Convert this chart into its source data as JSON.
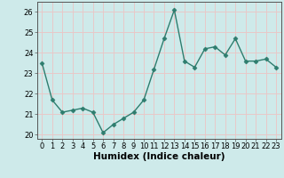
{
  "x": [
    0,
    1,
    2,
    3,
    4,
    5,
    6,
    7,
    8,
    9,
    10,
    11,
    12,
    13,
    14,
    15,
    16,
    17,
    18,
    19,
    20,
    21,
    22,
    23
  ],
  "y": [
    23.5,
    21.7,
    21.1,
    21.2,
    21.3,
    21.1,
    20.1,
    20.5,
    20.8,
    21.1,
    21.7,
    23.2,
    24.7,
    26.1,
    23.6,
    23.3,
    24.2,
    24.3,
    23.9,
    24.7,
    23.6,
    23.6,
    23.7,
    23.3
  ],
  "line_color": "#2e7d6e",
  "marker": "D",
  "marker_size": 2.5,
  "bg_color": "#ceeaea",
  "grid_color": "#e8c8c8",
  "xlabel": "Humidex (Indice chaleur)",
  "xlim": [
    -0.5,
    23.5
  ],
  "ylim": [
    19.8,
    26.5
  ],
  "yticks": [
    20,
    21,
    22,
    23,
    24,
    25,
    26
  ],
  "xticks": [
    0,
    1,
    2,
    3,
    4,
    5,
    6,
    7,
    8,
    9,
    10,
    11,
    12,
    13,
    14,
    15,
    16,
    17,
    18,
    19,
    20,
    21,
    22,
    23
  ],
  "tick_label_fontsize": 6,
  "xlabel_fontsize": 7.5,
  "linewidth": 1.0
}
